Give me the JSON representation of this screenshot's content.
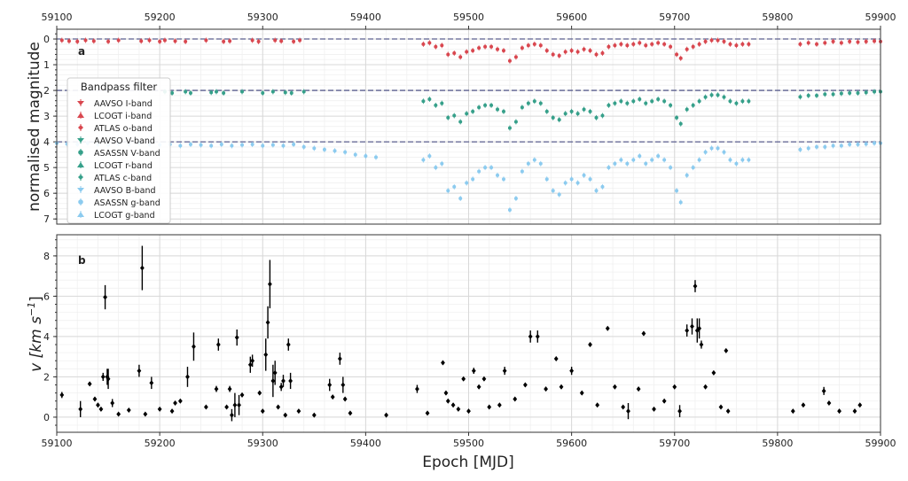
{
  "chart_data": [
    {
      "panel": "a",
      "type": "scatter",
      "xlabel": "",
      "ylabel": "normalised magnitude",
      "xlim": [
        59100,
        59900
      ],
      "ylim": [
        7.2,
        -0.38
      ],
      "y_inverted": true,
      "x_ticks": [
        "59100",
        "59200",
        "59300",
        "59400",
        "59500",
        "59600",
        "59700",
        "59800",
        "59900"
      ],
      "x_ticks_position": "top",
      "y_ticks": [
        "0",
        "1",
        "2",
        "3",
        "4",
        "5",
        "6",
        "7"
      ],
      "grid": true,
      "reference_lines": [
        0,
        2,
        4
      ],
      "reference_line_color": "#5b5f8f",
      "legend": {
        "title": "Bandpass filter",
        "placement": "left",
        "entries": [
          {
            "label": "AAVSO I-band",
            "color": "#d9474f",
            "marker": "triangle-down"
          },
          {
            "label": "LCOGT i-band",
            "color": "#d9474f",
            "marker": "triangle-up"
          },
          {
            "label": "ATLAS o-band",
            "color": "#d9474f",
            "marker": "diamond"
          },
          {
            "label": "AAVSO V-band",
            "color": "#36a08a",
            "marker": "triangle-down"
          },
          {
            "label": "ASASSN V-band",
            "color": "#36a08a",
            "marker": "circle"
          },
          {
            "label": "LCOGT r-band",
            "color": "#36a08a",
            "marker": "triangle-up"
          },
          {
            "label": "ATLAS c-band",
            "color": "#36a08a",
            "marker": "diamond"
          },
          {
            "label": "AAVSO B-band",
            "color": "#8ccbef",
            "marker": "triangle-down"
          },
          {
            "label": "ASASSN g-band",
            "color": "#8ccbef",
            "marker": "circle"
          },
          {
            "label": "LCOGT g-band",
            "color": "#8ccbef",
            "marker": "triangle-up"
          }
        ]
      },
      "series": [
        {
          "group": "red",
          "color": "#d9474f",
          "x": [
            59105,
            59112,
            59120,
            59128,
            59136,
            59150,
            59160,
            59182,
            59190,
            59200,
            59205,
            59215,
            59225,
            59245,
            59262,
            59268,
            59290,
            59296,
            59312,
            59318,
            59330,
            59336,
            59456,
            59462,
            59468,
            59474,
            59480,
            59486,
            59492,
            59498,
            59504,
            59510,
            59516,
            59522,
            59528,
            59534,
            59540,
            59546,
            59552,
            59558,
            59564,
            59570,
            59576,
            59582,
            59588,
            59594,
            59600,
            59606,
            59612,
            59618,
            59624,
            59630,
            59636,
            59642,
            59648,
            59654,
            59660,
            59666,
            59672,
            59678,
            59684,
            59690,
            59696,
            59702,
            59706,
            59712,
            59718,
            59724,
            59730,
            59736,
            59742,
            59748,
            59754,
            59760,
            59766,
            59772,
            59822,
            59830,
            59838,
            59846,
            59854,
            59862,
            59870,
            59878,
            59886,
            59894,
            59900
          ],
          "y": [
            0.05,
            0.08,
            0.1,
            0.05,
            0.08,
            0.1,
            0.05,
            0.08,
            0.05,
            0.1,
            0.05,
            0.08,
            0.1,
            0.05,
            0.1,
            0.08,
            0.05,
            0.1,
            0.05,
            0.08,
            0.1,
            0.05,
            0.2,
            0.15,
            0.3,
            0.25,
            0.6,
            0.55,
            0.7,
            0.5,
            0.45,
            0.35,
            0.3,
            0.3,
            0.4,
            0.45,
            0.85,
            0.7,
            0.35,
            0.25,
            0.2,
            0.25,
            0.45,
            0.6,
            0.65,
            0.5,
            0.45,
            0.5,
            0.4,
            0.45,
            0.6,
            0.55,
            0.3,
            0.25,
            0.2,
            0.25,
            0.2,
            0.15,
            0.25,
            0.2,
            0.15,
            0.2,
            0.3,
            0.6,
            0.75,
            0.4,
            0.3,
            0.2,
            0.1,
            0.05,
            0.05,
            0.1,
            0.2,
            0.25,
            0.2,
            0.2,
            0.2,
            0.15,
            0.2,
            0.15,
            0.1,
            0.15,
            0.1,
            0.12,
            0.1,
            0.08,
            0.1
          ]
        },
        {
          "group": "green",
          "color": "#36a08a",
          "x": [
            59205,
            59212,
            59225,
            59230,
            59250,
            59255,
            59262,
            59280,
            59300,
            59310,
            59322,
            59328,
            59340,
            59456,
            59462,
            59468,
            59474,
            59480,
            59486,
            59492,
            59498,
            59504,
            59510,
            59516,
            59522,
            59528,
            59534,
            59540,
            59546,
            59552,
            59558,
            59564,
            59570,
            59576,
            59582,
            59588,
            59594,
            59600,
            59606,
            59612,
            59618,
            59624,
            59630,
            59636,
            59642,
            59648,
            59654,
            59660,
            59666,
            59672,
            59678,
            59684,
            59690,
            59696,
            59702,
            59706,
            59712,
            59718,
            59724,
            59730,
            59736,
            59742,
            59748,
            59754,
            59760,
            59766,
            59772,
            59822,
            59830,
            59838,
            59846,
            59854,
            59862,
            59870,
            59878,
            59886,
            59894,
            59900
          ],
          "y": [
            2.05,
            2.1,
            2.05,
            2.1,
            2.08,
            2.05,
            2.1,
            2.05,
            2.1,
            2.05,
            2.08,
            2.1,
            2.05,
            2.42,
            2.34,
            2.58,
            2.5,
            3.06,
            2.98,
            3.22,
            2.9,
            2.82,
            2.66,
            2.58,
            2.58,
            2.74,
            2.82,
            3.46,
            3.22,
            2.66,
            2.5,
            2.42,
            2.5,
            2.82,
            3.06,
            3.14,
            2.9,
            2.82,
            2.9,
            2.74,
            2.82,
            3.06,
            2.98,
            2.58,
            2.5,
            2.42,
            2.5,
            2.42,
            2.34,
            2.5,
            2.42,
            2.34,
            2.42,
            2.58,
            3.06,
            3.3,
            2.74,
            2.58,
            2.42,
            2.26,
            2.18,
            2.18,
            2.26,
            2.42,
            2.5,
            2.42,
            2.42,
            2.25,
            2.2,
            2.2,
            2.15,
            2.15,
            2.12,
            2.1,
            2.1,
            2.08,
            2.05,
            2.05
          ]
        },
        {
          "group": "blue",
          "color": "#8ccbef",
          "x": [
            59100,
            59110,
            59120,
            59130,
            59140,
            59150,
            59160,
            59170,
            59180,
            59190,
            59200,
            59210,
            59220,
            59230,
            59240,
            59250,
            59260,
            59270,
            59280,
            59290,
            59300,
            59310,
            59320,
            59330,
            59340,
            59350,
            59360,
            59370,
            59380,
            59390,
            59400,
            59410,
            59456,
            59462,
            59468,
            59474,
            59480,
            59486,
            59492,
            59498,
            59504,
            59510,
            59516,
            59522,
            59528,
            59534,
            59540,
            59546,
            59552,
            59558,
            59564,
            59570,
            59576,
            59582,
            59588,
            59594,
            59600,
            59606,
            59612,
            59618,
            59624,
            59630,
            59636,
            59642,
            59648,
            59654,
            59660,
            59666,
            59672,
            59678,
            59684,
            59690,
            59696,
            59702,
            59706,
            59712,
            59718,
            59724,
            59730,
            59736,
            59742,
            59748,
            59754,
            59760,
            59766,
            59772,
            59822,
            59830,
            59838,
            59846,
            59854,
            59862,
            59870,
            59878,
            59886,
            59894,
            59900
          ],
          "y": [
            4.05,
            4.08,
            4.1,
            4.05,
            4.1,
            4.12,
            4.08,
            4.1,
            4.05,
            4.1,
            4.12,
            4.1,
            4.15,
            4.1,
            4.12,
            4.15,
            4.1,
            4.15,
            4.12,
            4.1,
            4.15,
            4.12,
            4.15,
            4.1,
            4.2,
            4.25,
            4.3,
            4.35,
            4.4,
            4.5,
            4.55,
            4.6,
            4.7,
            4.55,
            5.0,
            4.85,
            5.9,
            5.75,
            6.2,
            5.6,
            5.45,
            5.15,
            5.0,
            5.0,
            5.3,
            5.45,
            6.65,
            6.2,
            5.15,
            4.85,
            4.7,
            4.85,
            5.45,
            5.9,
            6.05,
            5.6,
            5.45,
            5.6,
            5.3,
            5.45,
            5.9,
            5.75,
            5.0,
            4.85,
            4.7,
            4.85,
            4.7,
            4.55,
            4.85,
            4.7,
            4.55,
            4.7,
            5.0,
            5.9,
            6.35,
            5.3,
            5.0,
            4.7,
            4.4,
            4.25,
            4.25,
            4.4,
            4.7,
            4.85,
            4.7,
            4.7,
            4.3,
            4.25,
            4.2,
            4.2,
            4.15,
            4.15,
            4.1,
            4.1,
            4.08,
            4.05,
            4.05
          ]
        }
      ]
    },
    {
      "panel": "b",
      "type": "scatter",
      "xlabel": "Epoch [MJD]",
      "ylabel": "v [km s⁻¹]",
      "ylabel_main": "v [km s",
      "ylabel_exp": "−1",
      "ylabel_close": "]",
      "xlim": [
        59100,
        59900
      ],
      "ylim": [
        -0.75,
        9.05
      ],
      "x_ticks": [
        "59100",
        "59200",
        "59300",
        "59400",
        "59500",
        "59600",
        "59700",
        "59800",
        "59900"
      ],
      "y_ticks": [
        "0",
        "2",
        "4",
        "6",
        "8"
      ],
      "grid": true,
      "color": "#000000",
      "x": [
        59105,
        59123,
        59132,
        59137,
        59140,
        59143,
        59145,
        59147,
        59149,
        59150,
        59154,
        59160,
        59170,
        59180,
        59183,
        59186,
        59192,
        59200,
        59212,
        59215,
        59220,
        59227,
        59233,
        59245,
        59255,
        59257,
        59265,
        59268,
        59270,
        59273,
        59275,
        59277,
        59280,
        59288,
        59290,
        59297,
        59300,
        59303,
        59305,
        59307,
        59310,
        59312,
        59315,
        59318,
        59320,
        59322,
        59325,
        59327,
        59335,
        59350,
        59365,
        59368,
        59375,
        59378,
        59380,
        59385,
        59420,
        59450,
        59460,
        59475,
        59478,
        59480,
        59485,
        59490,
        59495,
        59500,
        59505,
        59510,
        59515,
        59520,
        59530,
        59535,
        59545,
        59555,
        59560,
        59567,
        59575,
        59585,
        59590,
        59600,
        59610,
        59618,
        59625,
        59635,
        59642,
        59650,
        59655,
        59665,
        59670,
        59680,
        59690,
        59700,
        59705,
        59712,
        59717,
        59720,
        59722,
        59724,
        59726,
        59730,
        59738,
        59745,
        59750,
        59752,
        59815,
        59825,
        59845,
        59850,
        59860,
        59875,
        59880
      ],
      "y": [
        1.1,
        0.4,
        1.65,
        0.9,
        0.6,
        0.4,
        2.0,
        5.95,
        2.0,
        1.9,
        0.7,
        0.15,
        0.35,
        2.3,
        7.4,
        0.15,
        1.7,
        0.4,
        0.3,
        0.7,
        0.8,
        2.0,
        3.5,
        0.5,
        1.4,
        3.6,
        0.5,
        1.4,
        0.1,
        0.6,
        3.95,
        0.6,
        1.1,
        2.6,
        2.8,
        1.2,
        0.3,
        3.1,
        4.7,
        6.6,
        1.8,
        2.2,
        0.5,
        1.5,
        1.8,
        0.1,
        3.6,
        1.8,
        0.3,
        0.1,
        1.6,
        1.0,
        2.9,
        1.6,
        0.9,
        0.2,
        0.1,
        1.4,
        0.2,
        2.7,
        1.2,
        0.8,
        0.6,
        0.4,
        1.9,
        0.3,
        2.3,
        1.5,
        1.9,
        0.5,
        0.6,
        2.3,
        0.9,
        1.6,
        4.0,
        4.0,
        1.4,
        2.9,
        1.5,
        2.3,
        1.2,
        3.6,
        0.6,
        4.4,
        1.5,
        0.5,
        0.3,
        1.4,
        4.15,
        0.4,
        0.8,
        1.5,
        0.3,
        4.3,
        4.5,
        6.5,
        4.3,
        4.4,
        3.6,
        1.5,
        2.2,
        0.5,
        3.3,
        0.3,
        0.3,
        0.6,
        1.3,
        0.7,
        0.3,
        0.3,
        0.6
      ],
      "yerr": [
        0.15,
        0.4,
        0.1,
        0.1,
        0.1,
        0.1,
        0.2,
        0.6,
        0.4,
        0.5,
        0.2,
        0.05,
        0.05,
        0.3,
        1.1,
        0.05,
        0.3,
        0.05,
        0.05,
        0.1,
        0.1,
        0.5,
        0.7,
        0.05,
        0.15,
        0.3,
        0.05,
        0.15,
        0.3,
        0.6,
        0.4,
        0.5,
        0.1,
        0.4,
        0.3,
        0.1,
        0.05,
        0.8,
        0.8,
        1.2,
        0.8,
        0.6,
        0.1,
        0.2,
        0.3,
        0.05,
        0.3,
        0.4,
        0.05,
        0.05,
        0.3,
        0.1,
        0.3,
        0.4,
        0.1,
        0.05,
        0.05,
        0.2,
        0.05,
        0.1,
        0.1,
        0.1,
        0.1,
        0.05,
        0.1,
        0.05,
        0.15,
        0.1,
        0.1,
        0.05,
        0.05,
        0.2,
        0.1,
        0.1,
        0.3,
        0.3,
        0.1,
        0.1,
        0.1,
        0.2,
        0.1,
        0.1,
        0.05,
        0.1,
        0.1,
        0.05,
        0.4,
        0.1,
        0.1,
        0.05,
        0.1,
        0.1,
        0.3,
        0.3,
        0.4,
        0.3,
        0.6,
        0.5,
        0.2,
        0.1,
        0.1,
        0.05,
        0.1,
        0.05,
        0.05,
        0.05,
        0.2,
        0.05,
        0.05,
        0.05,
        0.05
      ]
    }
  ],
  "panel_labels": {
    "a": "a",
    "b": "b"
  }
}
